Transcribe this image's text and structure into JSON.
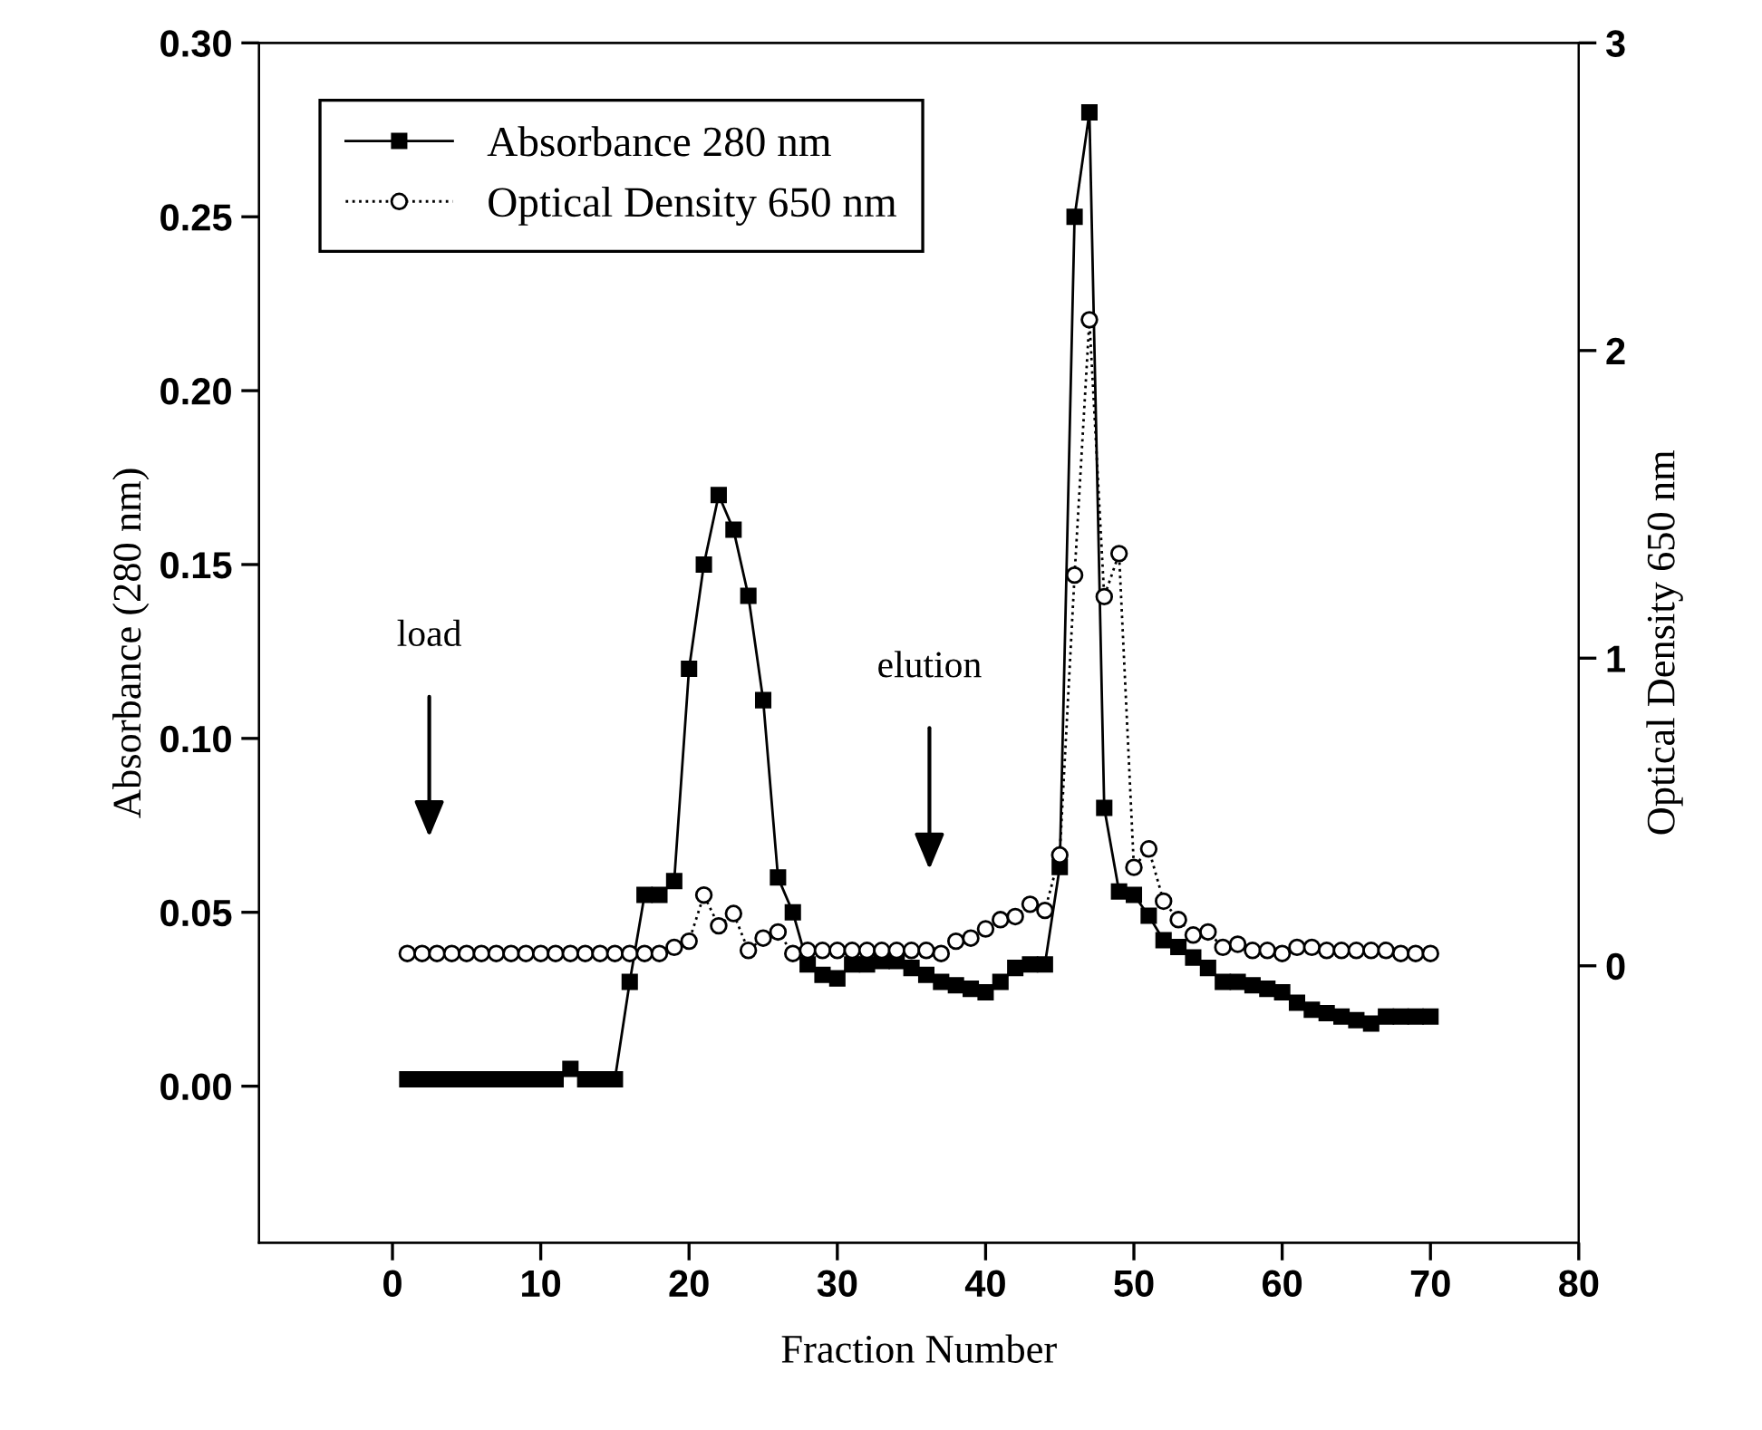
{
  "chart_data": {
    "type": "line",
    "xlabel": "Fraction Number",
    "ylabel": "Absorbance (280 nm)",
    "y2label": "Optical Density 650 nm",
    "x": [
      1,
      2,
      3,
      4,
      5,
      6,
      7,
      8,
      9,
      10,
      11,
      12,
      13,
      14,
      15,
      16,
      17,
      18,
      19,
      20,
      21,
      22,
      23,
      24,
      25,
      26,
      27,
      28,
      29,
      30,
      31,
      32,
      33,
      34,
      35,
      36,
      37,
      38,
      39,
      40,
      41,
      42,
      43,
      44,
      45,
      46,
      47,
      48,
      49,
      50,
      51,
      52,
      53,
      54,
      55,
      56,
      57,
      58,
      59,
      60,
      61,
      62,
      63,
      64,
      65,
      66,
      67,
      68,
      69,
      70
    ],
    "series": [
      {
        "name": "Absorbance 280 nm",
        "color": "#000000",
        "marker": "square",
        "line_style": "solid",
        "values": [
          0.002,
          0.002,
          0.002,
          0.002,
          0.002,
          0.002,
          0.002,
          0.002,
          0.002,
          0.002,
          0.002,
          0.005,
          0.002,
          0.002,
          0.002,
          0.03,
          0.055,
          0.055,
          0.059,
          0.12,
          0.15,
          0.17,
          0.16,
          0.141,
          0.111,
          0.06,
          0.05,
          0.035,
          0.032,
          0.031,
          0.035,
          0.035,
          0.036,
          0.036,
          0.034,
          0.032,
          0.03,
          0.029,
          0.028,
          0.027,
          0.03,
          0.034,
          0.035,
          0.035,
          0.063,
          0.25,
          0.28,
          0.08,
          0.056,
          0.055,
          0.049,
          0.042,
          0.04,
          0.037,
          0.034,
          0.03,
          0.03,
          0.029,
          0.028,
          0.027,
          0.024,
          0.022,
          0.021,
          0.02,
          0.019,
          0.018,
          0.02,
          0.02,
          0.02,
          0.02
        ]
      },
      {
        "name": "Optical Density 650 nm",
        "color": "#000000",
        "marker": "circle",
        "line_style": "dotted",
        "axis": "y2",
        "values": [
          0.04,
          0.04,
          0.04,
          0.04,
          0.04,
          0.04,
          0.04,
          0.04,
          0.04,
          0.04,
          0.04,
          0.04,
          0.04,
          0.04,
          0.04,
          0.04,
          0.04,
          0.04,
          0.06,
          0.08,
          0.23,
          0.13,
          0.17,
          0.05,
          0.09,
          0.11,
          0.04,
          0.05,
          0.05,
          0.05,
          0.05,
          0.05,
          0.05,
          0.05,
          0.05,
          0.05,
          0.04,
          0.08,
          0.09,
          0.12,
          0.15,
          0.16,
          0.2,
          0.18,
          0.36,
          1.27,
          2.1,
          1.2,
          1.34,
          0.32,
          0.38,
          0.21,
          0.15,
          0.1,
          0.11,
          0.06,
          0.07,
          0.05,
          0.05,
          0.04,
          0.06,
          0.06,
          0.05,
          0.05,
          0.05,
          0.05,
          0.05,
          0.04,
          0.04,
          0.04
        ]
      }
    ],
    "xlim": [
      -9,
      80
    ],
    "xticks": [
      0,
      10,
      20,
      30,
      40,
      50,
      60,
      70,
      80
    ],
    "ylim": [
      -0.045,
      0.3
    ],
    "yticks": [
      {
        "value": 0,
        "label": "0.00"
      },
      {
        "value": 0.05,
        "label": "0.05"
      },
      {
        "value": 0.1,
        "label": "0.10"
      },
      {
        "value": 0.15,
        "label": "0.15"
      },
      {
        "value": 0.2,
        "label": "0.20"
      },
      {
        "value": 0.25,
        "label": "0.25"
      },
      {
        "value": 0.3,
        "label": "0.30"
      }
    ],
    "y2lim": [
      -0.9,
      3
    ],
    "y2ticks": [
      0,
      1,
      2,
      3
    ],
    "annotations": [
      "load",
      "elution"
    ],
    "grid": false,
    "legend": "top left"
  }
}
